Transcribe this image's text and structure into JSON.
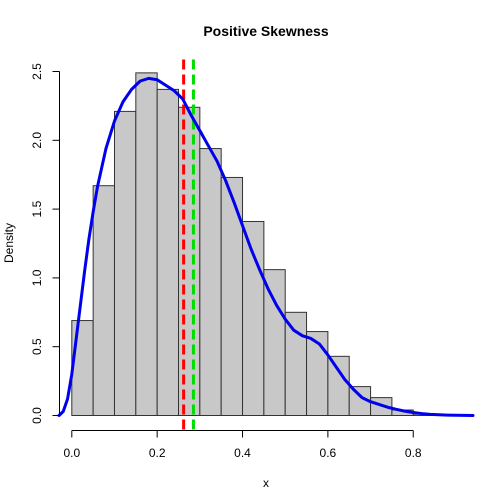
{
  "chart_data": {
    "type": "histogram",
    "title": "Positive Skewness",
    "xlabel": "x",
    "ylabel": "Density",
    "xlim": [
      -0.03,
      0.94
    ],
    "ylim": [
      0,
      2.5
    ],
    "x_ticks": [
      0.0,
      0.2,
      0.4,
      0.6,
      0.8
    ],
    "x_tick_labels": [
      "0.0",
      "0.2",
      "0.4",
      "0.6",
      "0.8"
    ],
    "y_ticks": [
      0.0,
      0.5,
      1.0,
      1.5,
      2.0,
      2.5
    ],
    "y_tick_labels": [
      "0.0",
      "0.5",
      "1.0",
      "1.5",
      "2.0",
      "2.5"
    ],
    "bin_width": 0.05,
    "bins": [
      {
        "start": 0.0,
        "end": 0.05,
        "density": 0.69
      },
      {
        "start": 0.05,
        "end": 0.1,
        "density": 1.67
      },
      {
        "start": 0.1,
        "end": 0.15,
        "density": 2.21
      },
      {
        "start": 0.15,
        "end": 0.2,
        "density": 2.49
      },
      {
        "start": 0.2,
        "end": 0.25,
        "density": 2.37
      },
      {
        "start": 0.25,
        "end": 0.3,
        "density": 2.24
      },
      {
        "start": 0.3,
        "end": 0.35,
        "density": 1.94
      },
      {
        "start": 0.35,
        "end": 0.4,
        "density": 1.73
      },
      {
        "start": 0.4,
        "end": 0.45,
        "density": 1.41
      },
      {
        "start": 0.45,
        "end": 0.5,
        "density": 1.06
      },
      {
        "start": 0.5,
        "end": 0.55,
        "density": 0.75
      },
      {
        "start": 0.55,
        "end": 0.6,
        "density": 0.61
      },
      {
        "start": 0.6,
        "end": 0.65,
        "density": 0.43
      },
      {
        "start": 0.65,
        "end": 0.7,
        "density": 0.21
      },
      {
        "start": 0.7,
        "end": 0.75,
        "density": 0.13
      },
      {
        "start": 0.75,
        "end": 0.8,
        "density": 0.04
      },
      {
        "start": 0.8,
        "end": 0.85,
        "density": 0.01
      }
    ],
    "bar_fill": "#c8c8c8",
    "bar_stroke": "#333333",
    "density_curve": {
      "color": "#0000ee",
      "points": [
        [
          -0.03,
          0.0
        ],
        [
          -0.02,
          0.03
        ],
        [
          -0.01,
          0.12
        ],
        [
          0.0,
          0.3
        ],
        [
          0.01,
          0.55
        ],
        [
          0.02,
          0.8
        ],
        [
          0.03,
          1.05
        ],
        [
          0.04,
          1.28
        ],
        [
          0.05,
          1.48
        ],
        [
          0.06,
          1.66
        ],
        [
          0.08,
          1.94
        ],
        [
          0.1,
          2.14
        ],
        [
          0.12,
          2.28
        ],
        [
          0.14,
          2.37
        ],
        [
          0.16,
          2.43
        ],
        [
          0.18,
          2.45
        ],
        [
          0.2,
          2.44
        ],
        [
          0.22,
          2.4
        ],
        [
          0.24,
          2.36
        ],
        [
          0.26,
          2.3
        ],
        [
          0.28,
          2.18
        ],
        [
          0.3,
          2.07
        ],
        [
          0.32,
          1.96
        ],
        [
          0.34,
          1.85
        ],
        [
          0.36,
          1.71
        ],
        [
          0.38,
          1.55
        ],
        [
          0.4,
          1.38
        ],
        [
          0.42,
          1.21
        ],
        [
          0.44,
          1.06
        ],
        [
          0.46,
          0.92
        ],
        [
          0.48,
          0.8
        ],
        [
          0.5,
          0.7
        ],
        [
          0.52,
          0.62
        ],
        [
          0.54,
          0.58
        ],
        [
          0.56,
          0.56
        ],
        [
          0.58,
          0.52
        ],
        [
          0.6,
          0.44
        ],
        [
          0.62,
          0.35
        ],
        [
          0.64,
          0.26
        ],
        [
          0.66,
          0.19
        ],
        [
          0.68,
          0.13
        ],
        [
          0.7,
          0.1
        ],
        [
          0.72,
          0.08
        ],
        [
          0.74,
          0.06
        ],
        [
          0.76,
          0.045
        ],
        [
          0.78,
          0.032
        ],
        [
          0.8,
          0.022
        ],
        [
          0.82,
          0.014
        ],
        [
          0.84,
          0.008
        ],
        [
          0.86,
          0.005
        ],
        [
          0.88,
          0.003
        ],
        [
          0.9,
          0.002
        ],
        [
          0.92,
          0.001
        ],
        [
          0.94,
          0.0
        ]
      ]
    },
    "reference_lines": [
      {
        "color": "#ff0000",
        "x": 0.262
      },
      {
        "color": "#00dd00",
        "x": 0.285
      }
    ]
  }
}
